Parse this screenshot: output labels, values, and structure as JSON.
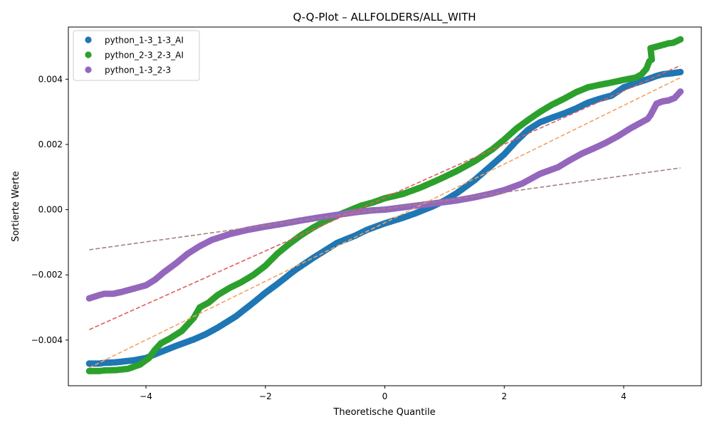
{
  "chart_data": {
    "type": "scatter",
    "title": "Q-Q-Plot – ALLFOLDERS/ALL_WITH",
    "xlabel": "Theoretische Quantile",
    "ylabel": "Sortierte Werte",
    "xlim": [
      -5.3,
      5.3
    ],
    "ylim": [
      -0.0054,
      0.0056
    ],
    "xticks": [
      -4,
      -2,
      0,
      2,
      4
    ],
    "xtick_labels": [
      "−4",
      "−2",
      "0",
      "2",
      "4"
    ],
    "yticks": [
      -0.004,
      -0.002,
      0.0,
      0.002,
      0.004
    ],
    "ytick_labels": [
      "−0.004",
      "−0.002",
      "0.000",
      "0.002",
      "0.004"
    ],
    "grid": false,
    "legend_position": "top-left",
    "series": [
      {
        "name": "python_1-3_1-3_AI",
        "color": "#1f77b4",
        "points": [
          [
            -4.95,
            -0.00472
          ],
          [
            -4.78,
            -0.00472
          ],
          [
            -4.7,
            -0.0047
          ],
          [
            -4.5,
            -0.00468
          ],
          [
            -4.2,
            -0.00462
          ],
          [
            -4.0,
            -0.00455
          ],
          [
            -3.8,
            -0.0044
          ],
          [
            -3.5,
            -0.00418
          ],
          [
            -3.2,
            -0.00398
          ],
          [
            -3.0,
            -0.00382
          ],
          [
            -2.8,
            -0.00362
          ],
          [
            -2.5,
            -0.00328
          ],
          [
            -2.2,
            -0.00285
          ],
          [
            -2.0,
            -0.00255
          ],
          [
            -1.8,
            -0.00228
          ],
          [
            -1.5,
            -0.00185
          ],
          [
            -1.2,
            -0.00148
          ],
          [
            -1.0,
            -0.00125
          ],
          [
            -0.8,
            -0.00102
          ],
          [
            -0.5,
            -0.0008
          ],
          [
            -0.3,
            -0.00062
          ],
          [
            0.0,
            -0.00042
          ],
          [
            0.3,
            -0.00025
          ],
          [
            0.5,
            -0.00012
          ],
          [
            0.8,
            0.0001
          ],
          [
            1.0,
            0.00028
          ],
          [
            1.2,
            0.0005
          ],
          [
            1.5,
            0.0009
          ],
          [
            1.8,
            0.00138
          ],
          [
            2.0,
            0.0017
          ],
          [
            2.2,
            0.0021
          ],
          [
            2.4,
            0.00245
          ],
          [
            2.6,
            0.00268
          ],
          [
            2.8,
            0.00282
          ],
          [
            3.0,
            0.00295
          ],
          [
            3.2,
            0.0031
          ],
          [
            3.4,
            0.00328
          ],
          [
            3.6,
            0.0034
          ],
          [
            3.8,
            0.0035
          ],
          [
            4.0,
            0.00375
          ],
          [
            4.2,
            0.00388
          ],
          [
            4.4,
            0.004
          ],
          [
            4.55,
            0.0041
          ],
          [
            4.65,
            0.00415
          ],
          [
            4.8,
            0.00418
          ],
          [
            4.95,
            0.00422
          ]
        ]
      },
      {
        "name": "python_2-3_2-3_AI",
        "color": "#2ca02c",
        "points": [
          [
            -4.95,
            -0.00495
          ],
          [
            -4.78,
            -0.00495
          ],
          [
            -4.7,
            -0.00493
          ],
          [
            -4.5,
            -0.00492
          ],
          [
            -4.3,
            -0.00488
          ],
          [
            -4.1,
            -0.00475
          ],
          [
            -3.95,
            -0.00455
          ],
          [
            -3.85,
            -0.0043
          ],
          [
            -3.75,
            -0.0041
          ],
          [
            -3.6,
            -0.00395
          ],
          [
            -3.4,
            -0.00372
          ],
          [
            -3.2,
            -0.00332
          ],
          [
            -3.1,
            -0.003
          ],
          [
            -2.95,
            -0.00285
          ],
          [
            -2.8,
            -0.00262
          ],
          [
            -2.6,
            -0.0024
          ],
          [
            -2.4,
            -0.00222
          ],
          [
            -2.2,
            -0.002
          ],
          [
            -2.0,
            -0.00172
          ],
          [
            -1.8,
            -0.00135
          ],
          [
            -1.6,
            -0.00105
          ],
          [
            -1.4,
            -0.00078
          ],
          [
            -1.2,
            -0.00055
          ],
          [
            -1.0,
            -0.00035
          ],
          [
            -0.8,
            -0.00018
          ],
          [
            -0.6,
            -3e-05
          ],
          [
            -0.4,
            0.00012
          ],
          [
            -0.2,
            0.00022
          ],
          [
            0.0,
            0.00035
          ],
          [
            0.3,
            0.00048
          ],
          [
            0.6,
            0.00068
          ],
          [
            0.9,
            0.00092
          ],
          [
            1.2,
            0.00118
          ],
          [
            1.5,
            0.00148
          ],
          [
            1.8,
            0.00185
          ],
          [
            2.0,
            0.00215
          ],
          [
            2.2,
            0.00248
          ],
          [
            2.4,
            0.00275
          ],
          [
            2.6,
            0.003
          ],
          [
            2.8,
            0.00322
          ],
          [
            3.0,
            0.0034
          ],
          [
            3.2,
            0.0036
          ],
          [
            3.4,
            0.00375
          ],
          [
            3.6,
            0.00383
          ],
          [
            3.8,
            0.0039
          ],
          [
            4.0,
            0.00398
          ],
          [
            4.2,
            0.00405
          ],
          [
            4.3,
            0.00415
          ],
          [
            4.38,
            0.00432
          ],
          [
            4.43,
            0.00455
          ],
          [
            4.47,
            0.0046
          ],
          [
            4.45,
            0.00495
          ],
          [
            4.55,
            0.005
          ],
          [
            4.65,
            0.00505
          ],
          [
            4.75,
            0.0051
          ],
          [
            4.83,
            0.00512
          ],
          [
            4.95,
            0.00522
          ]
        ]
      },
      {
        "name": "python_1-3_2-3",
        "color": "#9467bd",
        "points": [
          [
            -4.95,
            -0.00272
          ],
          [
            -4.78,
            -0.00262
          ],
          [
            -4.7,
            -0.00258
          ],
          [
            -4.55,
            -0.00258
          ],
          [
            -4.4,
            -0.00252
          ],
          [
            -4.2,
            -0.00242
          ],
          [
            -4.0,
            -0.00232
          ],
          [
            -3.85,
            -0.00215
          ],
          [
            -3.7,
            -0.00192
          ],
          [
            -3.5,
            -0.00165
          ],
          [
            -3.3,
            -0.00135
          ],
          [
            -3.1,
            -0.00112
          ],
          [
            -2.9,
            -0.00093
          ],
          [
            -2.6,
            -0.00075
          ],
          [
            -2.3,
            -0.00062
          ],
          [
            -2.0,
            -0.00052
          ],
          [
            -1.7,
            -0.00043
          ],
          [
            -1.4,
            -0.00033
          ],
          [
            -1.1,
            -0.00024
          ],
          [
            -0.8,
            -0.00016
          ],
          [
            -0.5,
            -8e-05
          ],
          [
            -0.2,
            -2e-05
          ],
          [
            0.0,
            0.0
          ],
          [
            0.3,
            7e-05
          ],
          [
            0.6,
            0.00014
          ],
          [
            0.9,
            0.00021
          ],
          [
            1.2,
            0.00028
          ],
          [
            1.5,
            0.00038
          ],
          [
            1.8,
            0.0005
          ],
          [
            2.0,
            0.0006
          ],
          [
            2.3,
            0.0008
          ],
          [
            2.6,
            0.0011
          ],
          [
            2.9,
            0.0013
          ],
          [
            3.1,
            0.00152
          ],
          [
            3.3,
            0.00172
          ],
          [
            3.5,
            0.00188
          ],
          [
            3.7,
            0.00205
          ],
          [
            3.9,
            0.00225
          ],
          [
            4.1,
            0.00248
          ],
          [
            4.3,
            0.00268
          ],
          [
            4.4,
            0.00278
          ],
          [
            4.45,
            0.0029
          ],
          [
            4.55,
            0.00325
          ],
          [
            4.65,
            0.00332
          ],
          [
            4.75,
            0.00335
          ],
          [
            4.85,
            0.00342
          ],
          [
            4.95,
            0.00362
          ]
        ]
      }
    ],
    "reference_lines": [
      {
        "color": "#f4a261",
        "points": [
          [
            -4.95,
            -0.00485
          ],
          [
            4.95,
            0.00405
          ]
        ]
      },
      {
        "color": "#e05c5c",
        "points": [
          [
            -4.95,
            -0.00368
          ],
          [
            4.95,
            0.00442
          ]
        ]
      },
      {
        "color": "#a88080",
        "points": [
          [
            -4.95,
            -0.00123
          ],
          [
            4.95,
            0.00128
          ]
        ]
      }
    ]
  }
}
